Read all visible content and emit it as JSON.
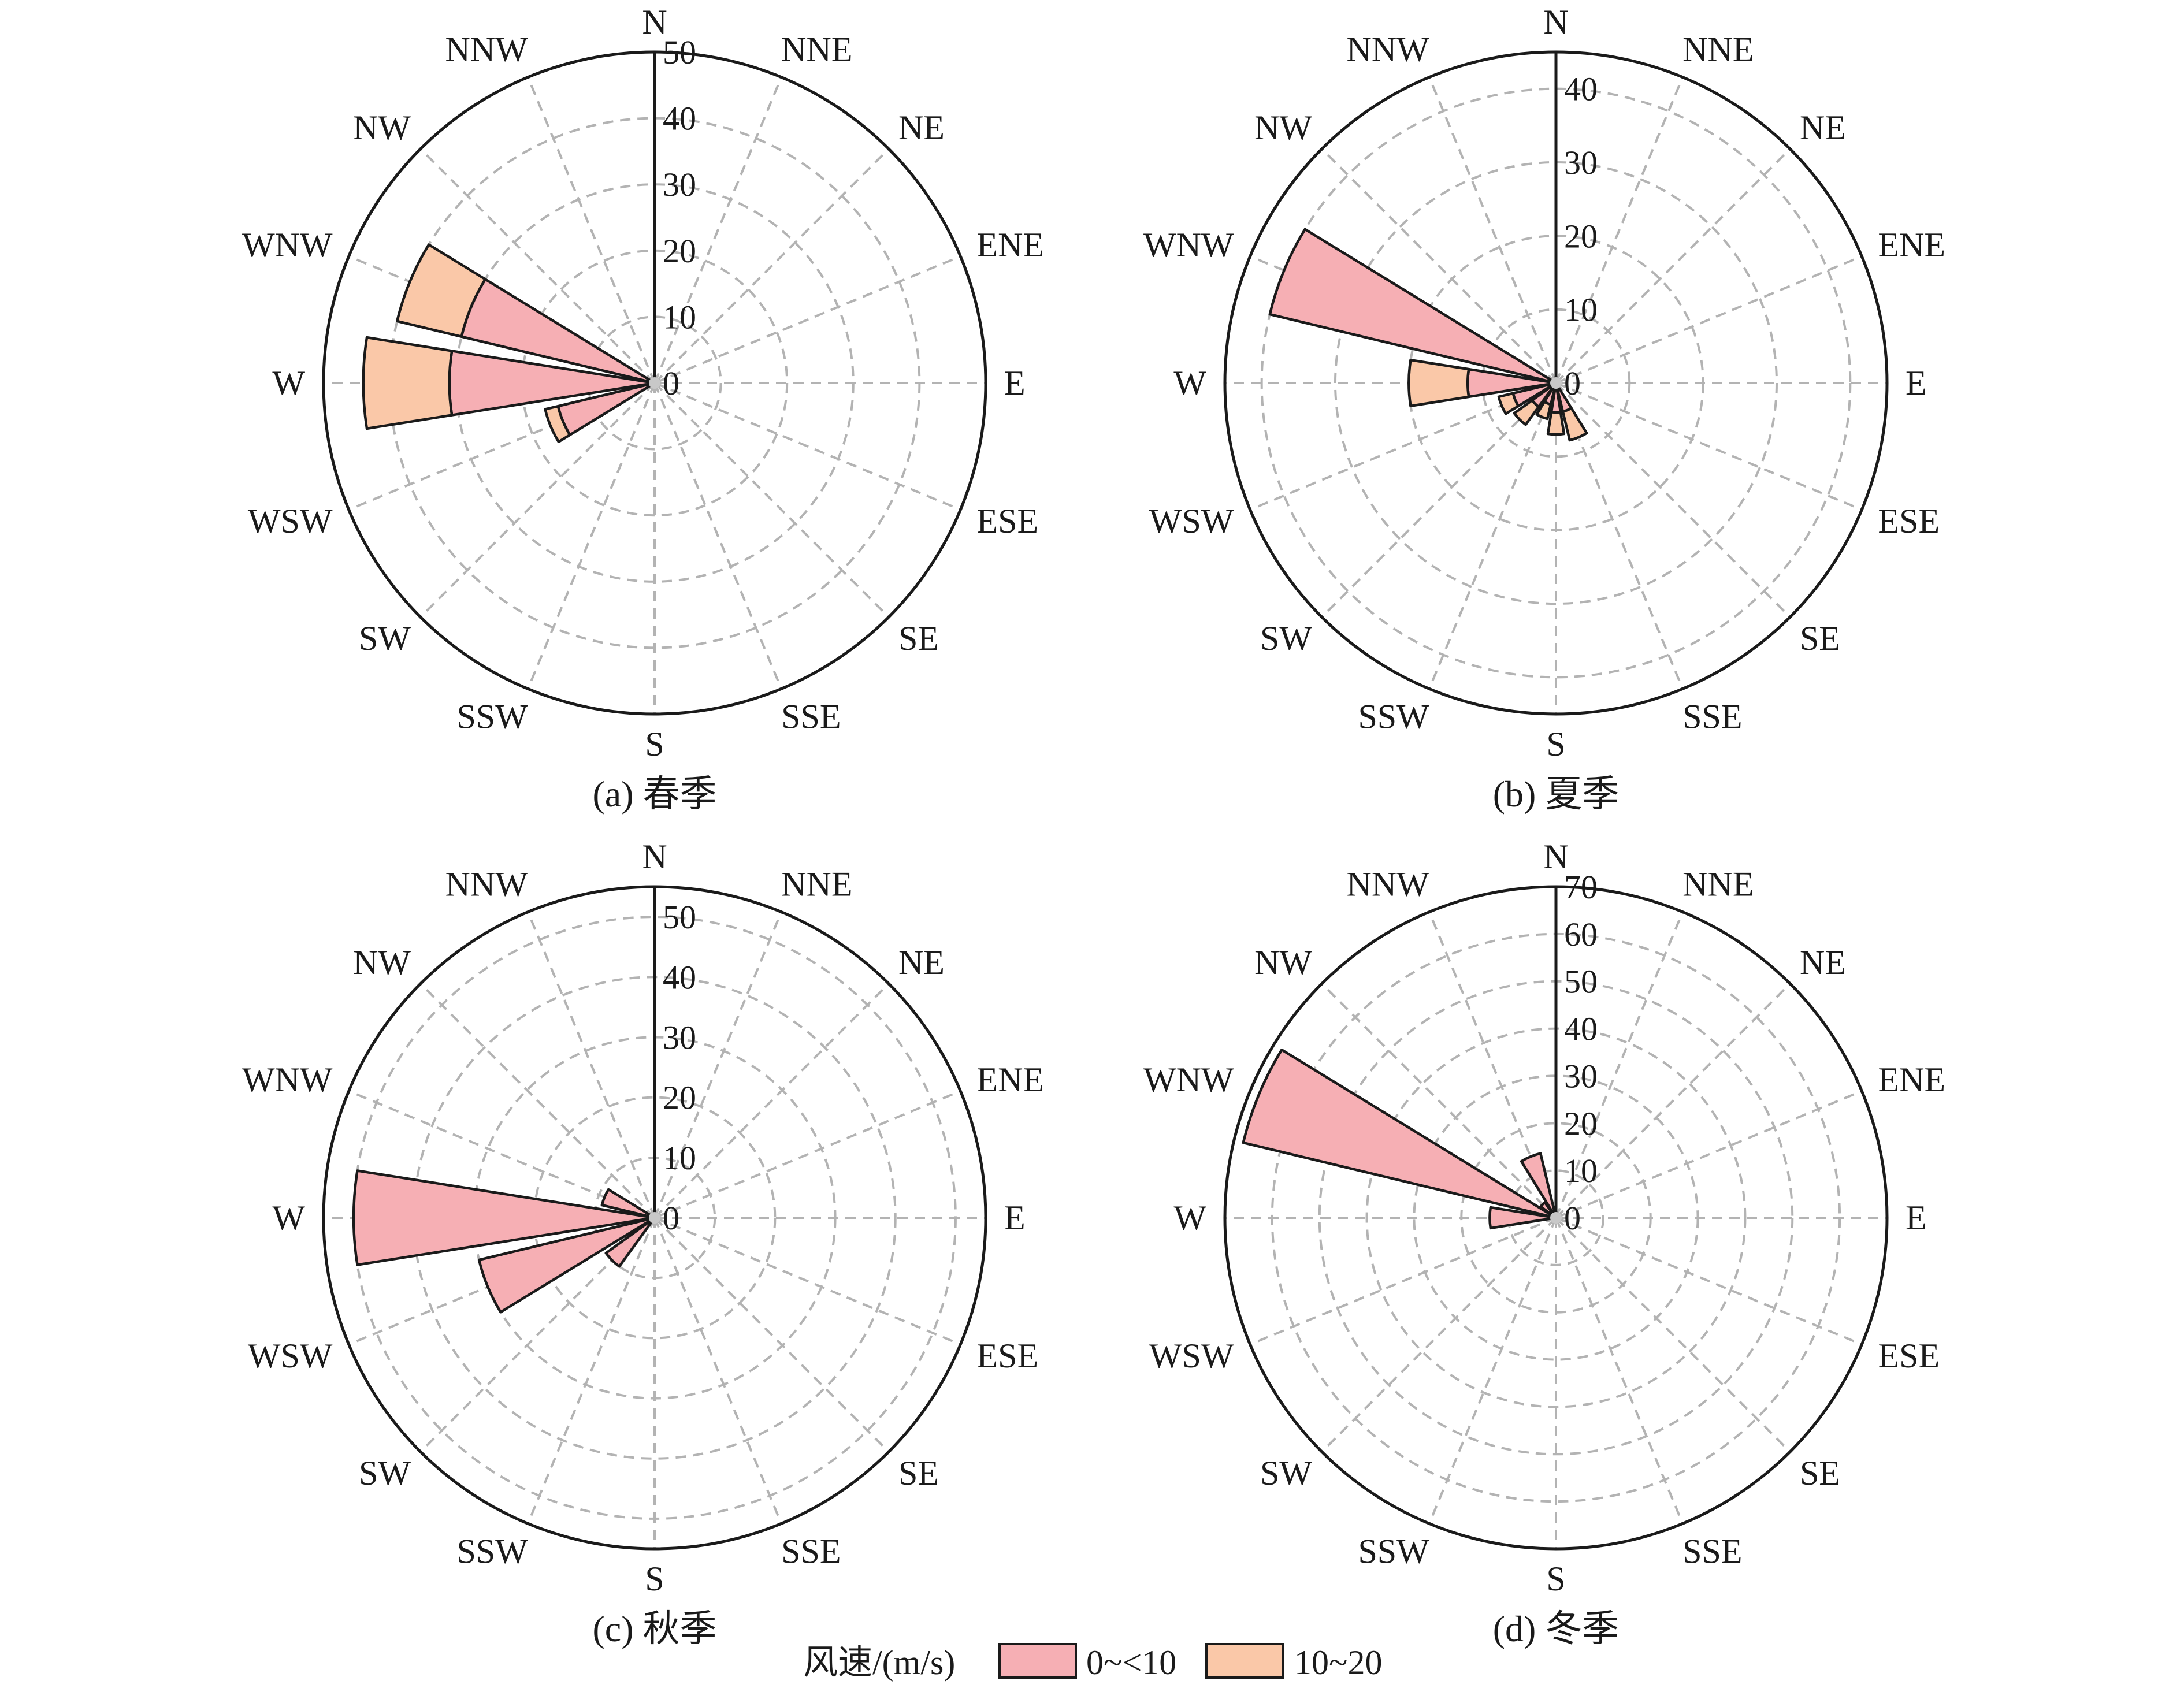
{
  "colors": {
    "bin_0_10": "#F6AFB4",
    "bin_10_20": "#FAC8A8",
    "grid": "#b3b3b3",
    "axis": "#1a1a1a"
  },
  "directions": [
    "N",
    "NNE",
    "NE",
    "ENE",
    "E",
    "ESE",
    "SE",
    "SSE",
    "S",
    "SSW",
    "SW",
    "WSW",
    "W",
    "WNW",
    "NW",
    "NNW"
  ],
  "legend": {
    "title": "风速/(m/s)",
    "items": [
      {
        "label": "0~<10",
        "color": "#F6AFB4"
      },
      {
        "label": "10~20",
        "color": "#FAC8A8"
      }
    ]
  },
  "chart_data": [
    {
      "type": "windrose",
      "caption": "(a) 春季",
      "rmax": 50,
      "ticks": [
        0,
        10,
        20,
        30,
        40,
        50
      ],
      "series": [
        {
          "name": "0~<10",
          "values": {
            "W": 31,
            "WNW": 30,
            "WSW": 15
          }
        },
        {
          "name": "10~20",
          "values": {
            "W": 13,
            "WNW": 10,
            "WSW": 2
          }
        }
      ]
    },
    {
      "type": "windrose",
      "caption": "(b) 夏季",
      "rmax": 45,
      "ticks": [
        0,
        10,
        20,
        30,
        40
      ],
      "series": [
        {
          "name": "0~<10",
          "values": {
            "WNW": 40,
            "W": 12,
            "WSW": 6,
            "SW": 4,
            "SSW": 3,
            "S": 4,
            "SSE": 4
          }
        },
        {
          "name": "10~20",
          "values": {
            "W": 8,
            "WSW": 2,
            "SW": 3,
            "SSW": 2,
            "S": 3,
            "SSE": 4
          }
        }
      ]
    },
    {
      "type": "windrose",
      "caption": "(c) 秋季",
      "rmax": 55,
      "ticks": [
        0,
        10,
        20,
        30,
        40,
        50
      ],
      "series": [
        {
          "name": "0~<10",
          "values": {
            "W": 50,
            "WSW": 30,
            "SW": 10,
            "WNW": 9
          }
        }
      ]
    },
    {
      "type": "windrose",
      "caption": "(d) 冬季",
      "rmax": 70,
      "ticks": [
        0,
        10,
        20,
        30,
        40,
        50,
        60,
        70
      ],
      "series": [
        {
          "name": "0~<10",
          "values": {
            "WNW": 68,
            "NNW": 14,
            "NW": 4,
            "W": 14
          }
        }
      ]
    }
  ]
}
